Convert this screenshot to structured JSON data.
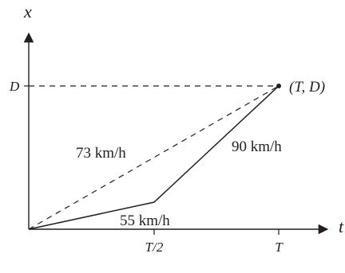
{
  "axes": {
    "x_axis_label": "t",
    "y_axis_label": "x"
  },
  "ticks": {
    "y_tick": "D",
    "x_tick_half": "T/2",
    "x_tick_full": "T"
  },
  "point": {
    "label": "(T, D)"
  },
  "segments": {
    "first_speed": "55 km/h",
    "second_speed": "90 km/h",
    "average_speed": "73 km/h"
  },
  "colors": {
    "ink": "#231f20",
    "background": "#ffffff"
  }
}
